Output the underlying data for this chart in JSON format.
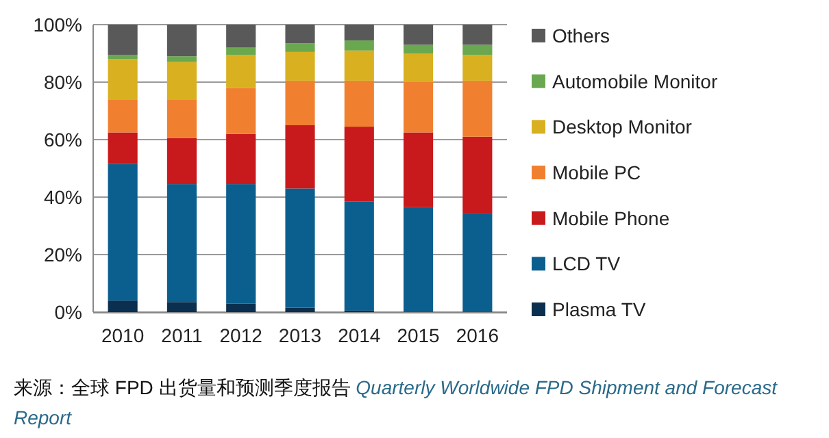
{
  "chart_data": {
    "type": "bar",
    "stacked": true,
    "categories": [
      "2010",
      "2011",
      "2012",
      "2013",
      "2014",
      "2015",
      "2016"
    ],
    "series": [
      {
        "name": "Plasma TV",
        "color": "#0b2f4e",
        "values": [
          4,
          3.5,
          3,
          1.5,
          0.5,
          0,
          0
        ]
      },
      {
        "name": "LCD TV",
        "color": "#0a5f8f",
        "values": [
          47.5,
          41,
          41.5,
          41.5,
          38,
          36.5,
          34.5
        ]
      },
      {
        "name": "Mobile Phone",
        "color": "#c8191c",
        "values": [
          11,
          16,
          17.5,
          22,
          26,
          26,
          26.5
        ]
      },
      {
        "name": "Mobile PC",
        "color": "#f08030",
        "values": [
          11.5,
          13.5,
          16,
          15.5,
          16,
          17.5,
          19.5
        ]
      },
      {
        "name": "Desktop Monitor",
        "color": "#d8b020",
        "values": [
          14,
          13,
          11.5,
          10,
          10.5,
          10,
          9
        ]
      },
      {
        "name": "Automobile Monitor",
        "color": "#6aa84f",
        "values": [
          1.5,
          2,
          2.5,
          3,
          3.5,
          3,
          3.5
        ]
      },
      {
        "name": "Others",
        "color": "#595959",
        "values": [
          10.5,
          11,
          8,
          6.5,
          5.5,
          7,
          7
        ]
      }
    ],
    "ylim": [
      0,
      100
    ],
    "yticks": [
      {
        "value": 0,
        "label": "0%"
      },
      {
        "value": 20,
        "label": "20%"
      },
      {
        "value": 40,
        "label": "40%"
      },
      {
        "value": 60,
        "label": "60%"
      },
      {
        "value": 80,
        "label": "80%"
      },
      {
        "value": 100,
        "label": "100%"
      }
    ],
    "grid": "y",
    "legend": "right",
    "annotations": [
      "来源：全球 FPD 出货量和预测季度报告",
      "Quarterly Worldwide FPD Shipment and Forecast Report"
    ]
  }
}
